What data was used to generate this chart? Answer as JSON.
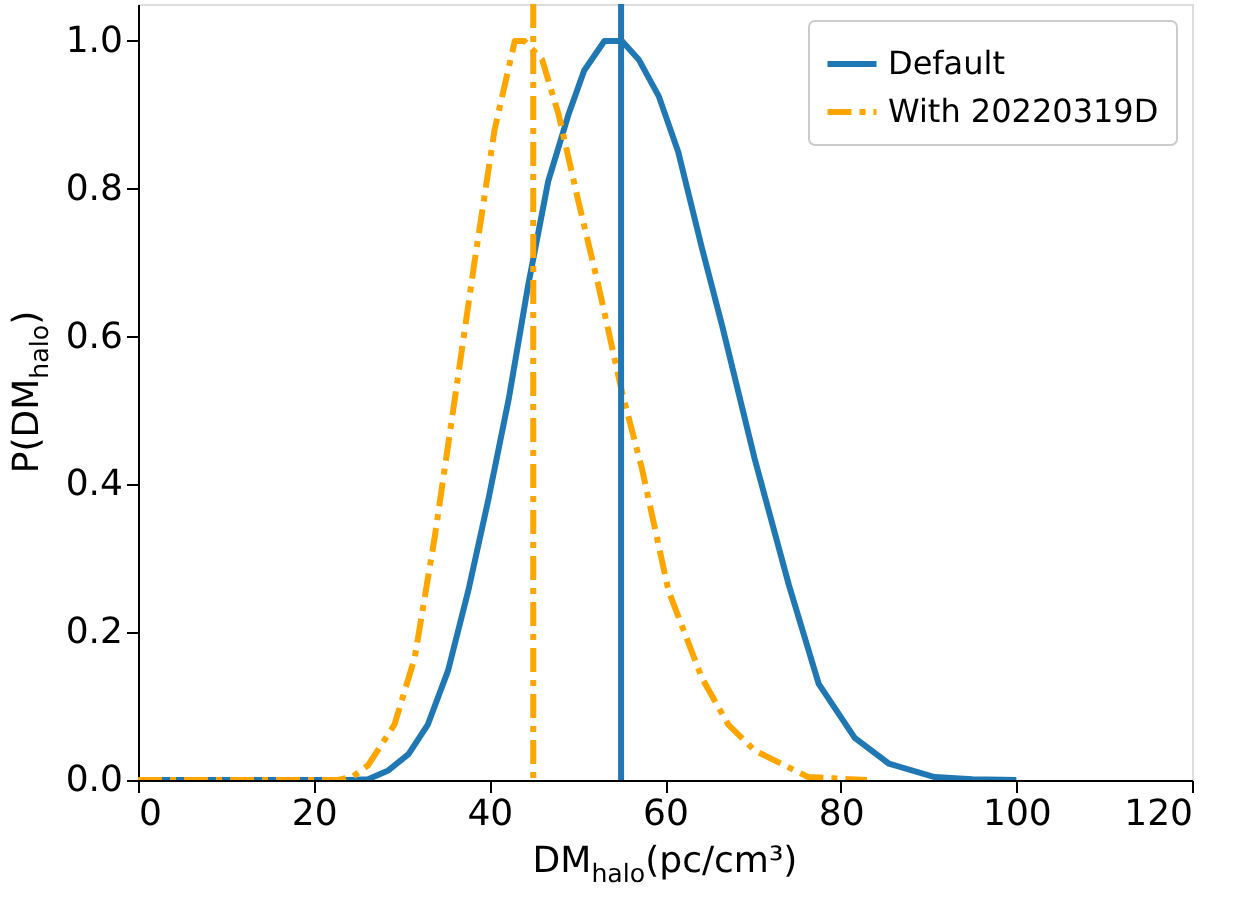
{
  "chart_data": {
    "type": "line",
    "xlabel": "DM$_{halo}$(pc/cm³)",
    "ylabel": "P(DM$_{halo}$)",
    "xlim": [
      0,
      120
    ],
    "xticks": [
      0,
      20,
      40,
      60,
      80,
      100,
      120
    ],
    "ylim": [
      0,
      1.05
    ],
    "yticks": [
      {
        "value": 0,
        "label": "0.0"
      },
      {
        "value": 0.2,
        "label": "0.2"
      },
      {
        "value": 0.4,
        "label": "0.4"
      },
      {
        "value": 0.6,
        "label": "0.6"
      },
      {
        "value": 0.8,
        "label": "0.8"
      },
      {
        "value": 1,
        "label": "1.0"
      }
    ],
    "grid": false,
    "legend": "top right",
    "marker": "none",
    "series": [
      {
        "name": "Default",
        "color": "#1f77b4",
        "line_style": "solid",
        "x": [
          0,
          10,
          20,
          24,
          26.2,
          28.5,
          30.8,
          33,
          35.3,
          37.6,
          39.9,
          42.2,
          44.4,
          46.7,
          49,
          50.8,
          53.1,
          55.1,
          57,
          59.3,
          61.5,
          64.2,
          66.5,
          70.2,
          74.1,
          77.5,
          81.6,
          85.5,
          90.7,
          95,
          100
        ],
        "values": [
          0,
          0,
          0,
          0,
          0.001,
          0.013,
          0.035,
          0.075,
          0.148,
          0.256,
          0.38,
          0.515,
          0.668,
          0.81,
          0.9,
          0.96,
          1.0,
          1.0,
          0.975,
          0.925,
          0.85,
          0.72,
          0.615,
          0.435,
          0.264,
          0.13,
          0.057,
          0.022,
          0.004,
          0.001,
          0
        ]
      },
      {
        "name": "With 20220319D",
        "color": "#ffa500",
        "line_style": "dashed",
        "x": [
          0,
          10,
          20,
          22.8,
          24.5,
          26.2,
          29.2,
          31.5,
          33.8,
          36,
          38.3,
          40.6,
          42.9,
          44,
          46,
          47.9,
          50.1,
          52.4,
          55.1,
          57.4,
          60.4,
          64.2,
          67.2,
          70.2,
          76.3,
          83
        ],
        "values": [
          0,
          0,
          0,
          0,
          0.005,
          0.02,
          0.075,
          0.165,
          0.33,
          0.51,
          0.7,
          0.88,
          1.0,
          1.0,
          0.975,
          0.9,
          0.785,
          0.67,
          0.525,
          0.42,
          0.256,
          0.138,
          0.075,
          0.04,
          0.004,
          0
        ]
      }
    ],
    "ref_lines": [
      {
        "axis": "x",
        "value": 55,
        "color": "#1f77b4",
        "line_style": "solid"
      },
      {
        "axis": "x",
        "value": 45,
        "color": "#ffa500",
        "line_style": "dashed"
      }
    ]
  }
}
